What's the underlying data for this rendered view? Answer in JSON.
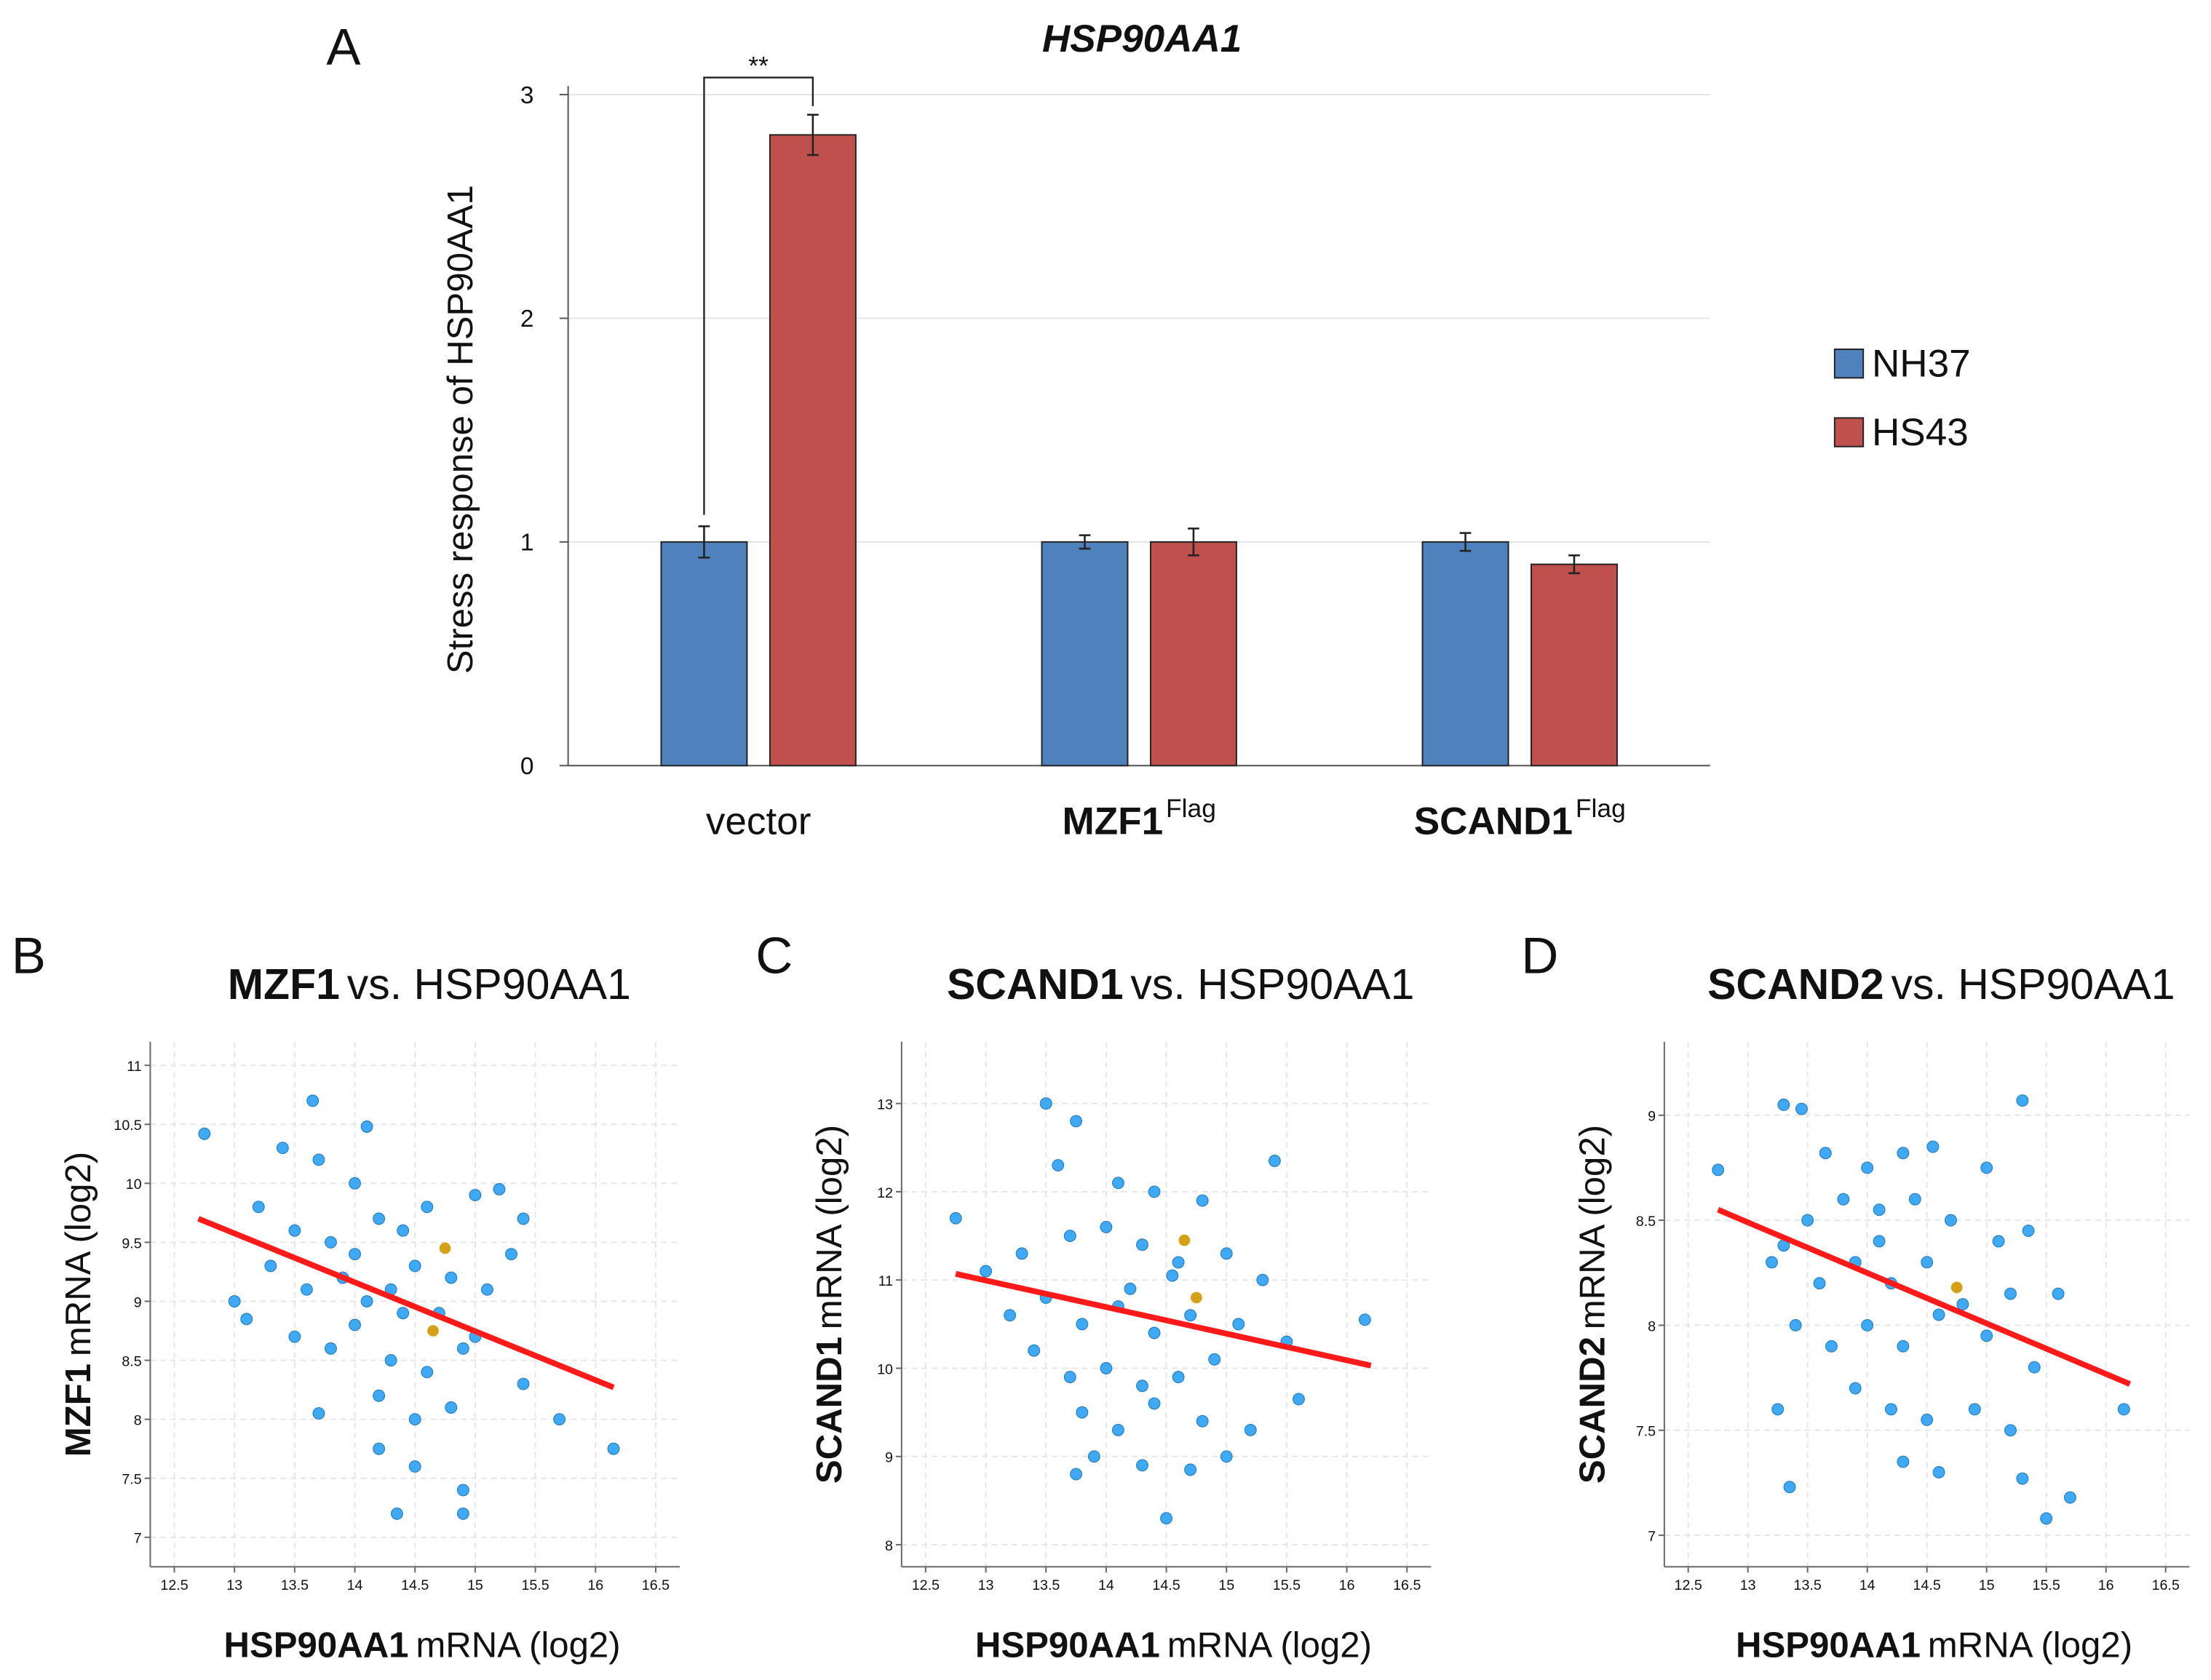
{
  "chart_data": [
    {
      "type": "bar",
      "panel_label": "A",
      "title": "HSP90AA1",
      "y_label": "Stress response of HSP90AA1",
      "categories": [
        "vector",
        "MZF1",
        "SCAND1"
      ],
      "category_superscripts": [
        null,
        "Flag",
        "Flag"
      ],
      "series": [
        {
          "name": "NH37",
          "color": "#4f81bd",
          "values": [
            1.0,
            1.0,
            1.0
          ],
          "errors": [
            0.07,
            0.03,
            0.04
          ]
        },
        {
          "name": "HS43",
          "color": "#c0504d",
          "values": [
            2.82,
            1.0,
            0.9
          ],
          "errors": [
            0.09,
            0.06,
            0.04
          ]
        }
      ],
      "ylim": [
        0,
        3
      ],
      "yticks": [
        0,
        1,
        2,
        3
      ],
      "grid": true,
      "legend": "right",
      "annotation": "**"
    },
    {
      "type": "scatter",
      "panel_label": "B",
      "title_bold": "MZF1",
      "title_rest": "vs. HSP90AA1",
      "x_label_bold": "HSP90AA1",
      "x_label_rest": "mRNA (log2)",
      "y_label_bold": "MZF1",
      "y_label_rest": "mRNA (log2)",
      "xlim": [
        12.3,
        16.7
      ],
      "xticks": [
        12.5,
        13,
        13.5,
        14,
        14.5,
        15,
        15.5,
        16,
        16.5
      ],
      "ylim": [
        6.75,
        11.2
      ],
      "yticks": [
        7,
        7.5,
        8,
        8.5,
        9,
        9.5,
        10,
        10.5,
        11
      ],
      "grid": true,
      "color": "#3fa9f5",
      "x": [
        12.75,
        13.65,
        14.1,
        13.4,
        13.7,
        14.0,
        13.2,
        13.5,
        13.8,
        14.2,
        14.4,
        14.6,
        15.0,
        15.2,
        15.4,
        13.3,
        13.6,
        13.9,
        14.1,
        14.3,
        14.5,
        14.8,
        15.1,
        15.3,
        13.1,
        13.5,
        13.8,
        14.0,
        14.3,
        14.6,
        14.9,
        15.4,
        13.7,
        14.2,
        14.5,
        14.8,
        15.7,
        16.15,
        14.2,
        14.5,
        14.9,
        14.35,
        14.9,
        13.0,
        14.0,
        14.4,
        14.7,
        15.0
      ],
      "y": [
        10.42,
        10.7,
        10.48,
        10.3,
        10.2,
        10.0,
        9.8,
        9.6,
        9.5,
        9.7,
        9.6,
        9.8,
        9.9,
        9.95,
        9.7,
        9.3,
        9.1,
        9.2,
        9.0,
        9.1,
        9.3,
        9.2,
        9.1,
        9.4,
        8.85,
        8.7,
        8.6,
        8.8,
        8.5,
        8.4,
        8.6,
        8.3,
        8.05,
        8.2,
        8.0,
        8.1,
        8.0,
        7.75,
        7.75,
        7.6,
        7.4,
        7.2,
        7.2,
        9.0,
        9.4,
        8.9,
        8.9,
        8.7
      ],
      "highlight_color": "#d4a017",
      "highlight_x": [
        14.75,
        14.65
      ],
      "highlight_y": [
        9.45,
        8.75
      ],
      "fit_color": "#ff1a1a",
      "fit_x": [
        12.7,
        16.15
      ],
      "fit_y": [
        9.7,
        8.27
      ]
    },
    {
      "type": "scatter",
      "panel_label": "C",
      "title_bold": "SCAND1",
      "title_rest": "vs. HSP90AA1",
      "x_label_bold": "HSP90AA1",
      "x_label_rest": "mRNA (log2)",
      "y_label_bold": "SCAND1",
      "y_label_rest": "mRNA (log2)",
      "xlim": [
        12.3,
        16.7
      ],
      "xticks": [
        12.5,
        13,
        13.5,
        14,
        14.5,
        15,
        15.5,
        16,
        16.5
      ],
      "ylim": [
        7.75,
        13.7
      ],
      "yticks": [
        8,
        9,
        10,
        11,
        12,
        13
      ],
      "grid": true,
      "color": "#3fa9f5",
      "x": [
        12.75,
        13.5,
        13.75,
        13.6,
        14.1,
        14.4,
        14.8,
        15.4,
        13.0,
        13.3,
        13.7,
        14.0,
        14.3,
        14.6,
        15.0,
        15.3,
        13.2,
        13.5,
        13.8,
        14.1,
        14.4,
        14.7,
        15.1,
        15.5,
        16.15,
        13.4,
        13.7,
        14.0,
        14.3,
        14.6,
        14.9,
        15.6,
        13.8,
        14.1,
        14.4,
        14.8,
        15.2,
        13.9,
        14.3,
        14.7,
        15.0,
        13.75,
        14.5,
        14.2,
        14.55
      ],
      "y": [
        11.7,
        13.0,
        12.8,
        12.3,
        12.1,
        12.0,
        11.9,
        12.35,
        11.1,
        11.3,
        11.5,
        11.6,
        11.4,
        11.2,
        11.3,
        11.0,
        10.6,
        10.8,
        10.5,
        10.7,
        10.4,
        10.6,
        10.5,
        10.3,
        10.55,
        10.2,
        9.9,
        10.0,
        9.8,
        9.9,
        10.1,
        9.65,
        9.5,
        9.3,
        9.6,
        9.4,
        9.3,
        9.0,
        8.9,
        8.85,
        9.0,
        8.8,
        8.3,
        10.9,
        11.05
      ],
      "highlight_color": "#d4a017",
      "highlight_x": [
        14.65,
        14.75
      ],
      "highlight_y": [
        11.45,
        10.8
      ],
      "fit_color": "#ff1a1a",
      "fit_x": [
        12.75,
        16.2
      ],
      "fit_y": [
        11.07,
        10.03
      ]
    },
    {
      "type": "scatter",
      "panel_label": "D",
      "title_bold": "SCAND2",
      "title_rest": "vs. HSP90AA1",
      "x_label_bold": "HSP90AA1",
      "x_label_rest": "mRNA (log2)",
      "y_label_bold": "SCAND2",
      "y_label_rest": "mRNA (log2)",
      "xlim": [
        12.3,
        16.7
      ],
      "xticks": [
        12.5,
        13,
        13.5,
        14,
        14.5,
        15,
        15.5,
        16,
        16.5
      ],
      "ylim": [
        6.85,
        9.35
      ],
      "yticks": [
        7,
        7.5,
        8,
        8.5,
        9
      ],
      "grid": true,
      "color": "#3fa9f5",
      "x": [
        12.75,
        13.3,
        13.45,
        13.65,
        14.0,
        14.3,
        14.55,
        15.3,
        15.0,
        13.3,
        13.5,
        13.8,
        14.1,
        14.4,
        14.7,
        15.1,
        15.35,
        13.2,
        13.6,
        13.9,
        14.2,
        14.5,
        14.8,
        15.2,
        15.6,
        13.4,
        13.7,
        14.0,
        14.3,
        14.6,
        15.0,
        15.4,
        13.25,
        13.9,
        14.2,
        14.5,
        14.9,
        15.2,
        16.15,
        14.3,
        14.6,
        13.35,
        15.3,
        15.5,
        15.7,
        14.1
      ],
      "y": [
        8.74,
        9.05,
        9.03,
        8.82,
        8.75,
        8.82,
        8.85,
        9.07,
        8.75,
        8.38,
        8.5,
        8.6,
        8.55,
        8.6,
        8.5,
        8.4,
        8.45,
        8.3,
        8.2,
        8.3,
        8.2,
        8.3,
        8.1,
        8.15,
        8.15,
        8.0,
        7.9,
        8.0,
        7.9,
        8.05,
        7.95,
        7.8,
        7.6,
        7.7,
        7.6,
        7.55,
        7.6,
        7.5,
        7.6,
        7.35,
        7.3,
        7.23,
        7.27,
        7.08,
        7.18,
        8.4
      ],
      "highlight_color": "#d4a017",
      "highlight_x": [
        14.75
      ],
      "highlight_y": [
        8.18
      ],
      "fit_color": "#ff1a1a",
      "fit_x": [
        12.75,
        16.2
      ],
      "fit_y": [
        8.55,
        7.72
      ]
    }
  ]
}
